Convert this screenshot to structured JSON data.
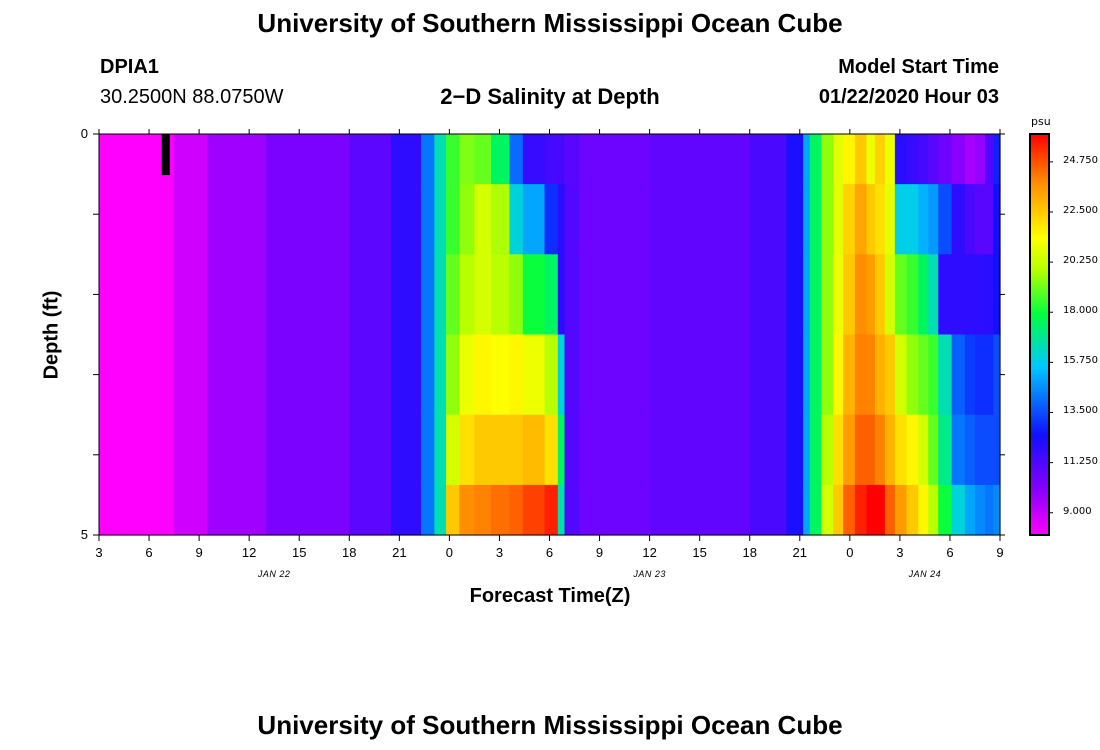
{
  "page": {
    "title_top": "University of Southern Mississippi Ocean Cube",
    "title_bottom": "University of Southern Mississippi Ocean Cube",
    "station_id": "DPIA1",
    "station_coords": "30.2500N 88.0750W",
    "plot_title": "2−D Salinity at Depth",
    "model_start_label": "Model Start Time",
    "model_start_value": "01/22/2020 Hour 03"
  },
  "chart_data": {
    "type": "heatmap",
    "title": "2-D Salinity at Depth",
    "xlabel": "Forecast Time(Z)",
    "ylabel": "Depth (ft)",
    "x_hours": [
      0,
      3,
      6,
      9,
      12,
      15,
      18,
      21,
      24,
      27,
      30,
      33,
      36,
      39,
      42,
      45,
      48,
      51,
      54
    ],
    "x_tick_labels": [
      "3",
      "6",
      "9",
      "12",
      "15",
      "18",
      "21",
      "0",
      "3",
      "6",
      "9",
      "12",
      "15",
      "18",
      "21",
      "0",
      "3",
      "6",
      "9"
    ],
    "date_labels": [
      {
        "text": "JAN 22",
        "hour": 10.5
      },
      {
        "text": "JAN 23",
        "hour": 33
      },
      {
        "text": "JAN 24",
        "hour": 49.5
      }
    ],
    "xlim": [
      0,
      54
    ],
    "y_tick_labels": [
      "0",
      "5"
    ],
    "ylim": [
      0,
      5
    ],
    "colorbar": {
      "unit": "psu",
      "tick_labels": [
        "24.750",
        "22.500",
        "20.250",
        "18.000",
        "15.750",
        "13.500",
        "11.250",
        "9.000"
      ],
      "range": [
        8.0,
        26.0
      ]
    },
    "depth_levels_ft": [
      0.25,
      1.0,
      2.0,
      3.0,
      4.0,
      4.75
    ],
    "time_segments": [
      {
        "t": [
          0,
          1.5
        ],
        "v": [
          7.5,
          7.5,
          7.5,
          7.5,
          7.5,
          7.5
        ]
      },
      {
        "t": [
          1.5,
          4.5
        ],
        "v": [
          7.2,
          7.2,
          7.2,
          7.2,
          7.2,
          7.2
        ]
      },
      {
        "t": [
          4.5,
          6.5
        ],
        "v": [
          8.8,
          8.8,
          8.8,
          8.8,
          8.8,
          8.8
        ]
      },
      {
        "t": [
          6.5,
          10
        ],
        "v": [
          9.6,
          9.6,
          9.6,
          9.6,
          9.6,
          9.6
        ]
      },
      {
        "t": [
          10,
          15
        ],
        "v": [
          10.3,
          10.3,
          10.3,
          10.3,
          10.3,
          10.3
        ]
      },
      {
        "t": [
          15,
          17.5
        ],
        "v": [
          10.9,
          10.9,
          10.9,
          10.9,
          10.9,
          10.9
        ]
      },
      {
        "t": [
          17.5,
          19.3
        ],
        "v": [
          11.9,
          11.9,
          11.9,
          11.9,
          11.9,
          11.9
        ]
      },
      {
        "t": [
          19.3,
          20.1
        ],
        "v": [
          14.2,
          14.2,
          14.2,
          14.2,
          14.2,
          14.2
        ]
      },
      {
        "t": [
          20.1,
          20.8
        ],
        "v": [
          16.5,
          16.5,
          16.5,
          16.5,
          16.5,
          16.5
        ]
      },
      {
        "t": [
          20.8,
          21.6
        ],
        "v": [
          18.5,
          18.5,
          19.0,
          19.5,
          20.5,
          22.5
        ]
      },
      {
        "t": [
          21.6,
          22.5
        ],
        "v": [
          19.3,
          19.5,
          20.0,
          21.0,
          22.0,
          23.8
        ]
      },
      {
        "t": [
          22.5,
          23.5
        ],
        "v": [
          19.0,
          20.5,
          20.5,
          21.5,
          22.5,
          24.0
        ]
      },
      {
        "t": [
          23.5,
          24.6
        ],
        "v": [
          17.5,
          19.8,
          20.0,
          21.3,
          22.5,
          24.3
        ]
      },
      {
        "t": [
          24.6,
          25.4
        ],
        "v": [
          14.0,
          16.0,
          19.5,
          21.5,
          22.5,
          24.5
        ]
      },
      {
        "t": [
          25.4,
          26.7
        ],
        "v": [
          11.7,
          15.0,
          18.0,
          21.0,
          22.8,
          25.0
        ]
      },
      {
        "t": [
          26.7,
          27.5
        ],
        "v": [
          11.4,
          13.0,
          17.5,
          20.0,
          22.0,
          25.5
        ]
      },
      {
        "t": [
          27.5,
          27.9
        ],
        "v": [
          11.4,
          12.0,
          12.0,
          16.0,
          17.5,
          16.5
        ]
      },
      {
        "t": [
          27.9,
          28.8
        ],
        "v": [
          11.0,
          11.1,
          11.1,
          11.1,
          11.1,
          11.1
        ]
      },
      {
        "t": [
          28.8,
          33
        ],
        "v": [
          10.6,
          10.6,
          10.6,
          10.6,
          10.6,
          10.6
        ]
      },
      {
        "t": [
          33,
          39
        ],
        "v": [
          10.8,
          10.8,
          10.8,
          10.8,
          10.8,
          10.8
        ]
      },
      {
        "t": [
          39,
          41.2
        ],
        "v": [
          11.3,
          11.3,
          11.3,
          11.3,
          11.3,
          11.3
        ]
      },
      {
        "t": [
          41.2,
          42.2
        ],
        "v": [
          12.3,
          12.3,
          12.3,
          12.3,
          12.3,
          12.3
        ]
      },
      {
        "t": [
          42.2,
          42.6
        ],
        "v": [
          15.0,
          15.0,
          15.0,
          15.0,
          15.0,
          15.0
        ]
      },
      {
        "t": [
          42.6,
          43.3
        ],
        "v": [
          17.5,
          17.5,
          17.5,
          17.5,
          17.5,
          17.5
        ]
      },
      {
        "t": [
          43.3,
          44
        ],
        "v": [
          19.5,
          19.5,
          19.5,
          19.5,
          20.0,
          20.5
        ]
      },
      {
        "t": [
          44,
          44.6
        ],
        "v": [
          20.8,
          20.8,
          21.0,
          21.5,
          22.0,
          22.5
        ]
      },
      {
        "t": [
          44.6,
          45.3
        ],
        "v": [
          21.5,
          22.3,
          22.5,
          23.0,
          23.5,
          24.5
        ]
      },
      {
        "t": [
          45.3,
          46.0
        ],
        "v": [
          22.5,
          23.3,
          23.8,
          24.0,
          24.5,
          25.5
        ]
      },
      {
        "t": [
          46.0,
          46.5
        ],
        "v": [
          21.0,
          22.5,
          23.5,
          24.0,
          24.5,
          26.0
        ]
      },
      {
        "t": [
          46.5,
          47.1
        ],
        "v": [
          22.3,
          22.0,
          22.5,
          23.0,
          24.0,
          26.0
        ]
      },
      {
        "t": [
          47.1,
          47.7
        ],
        "v": [
          21.0,
          20.8,
          20.5,
          22.5,
          23.0,
          24.5
        ]
      },
      {
        "t": [
          47.7,
          48.4
        ],
        "v": [
          12.0,
          15.8,
          19.0,
          20.5,
          22.0,
          23.5
        ]
      },
      {
        "t": [
          48.4,
          49.1
        ],
        "v": [
          11.7,
          15.8,
          18.5,
          19.5,
          21.5,
          22.5
        ]
      },
      {
        "t": [
          49.1,
          49.7
        ],
        "v": [
          11.4,
          15.2,
          17.5,
          19.0,
          20.5,
          21.5
        ]
      },
      {
        "t": [
          49.7,
          50.3
        ],
        "v": [
          11.0,
          14.8,
          16.5,
          18.5,
          19.0,
          20.0
        ]
      },
      {
        "t": [
          50.3,
          51.1
        ],
        "v": [
          10.6,
          13.5,
          11.9,
          16.5,
          17.0,
          18.0
        ]
      },
      {
        "t": [
          51.1,
          51.9
        ],
        "v": [
          10.0,
          11.9,
          11.9,
          13.8,
          14.2,
          16.0
        ]
      },
      {
        "t": [
          51.9,
          52.5
        ],
        "v": [
          9.5,
          11.3,
          11.9,
          13.2,
          13.8,
          15.0
        ]
      },
      {
        "t": [
          52.5,
          53.1
        ],
        "v": [
          9.8,
          11.0,
          11.9,
          13.0,
          13.5,
          14.5
        ]
      },
      {
        "t": [
          53.1,
          53.6
        ],
        "v": [
          11.2,
          11.0,
          12.0,
          13.0,
          13.5,
          14.2
        ]
      },
      {
        "t": [
          53.6,
          54
        ],
        "v": [
          12.8,
          12.5,
          12.5,
          13.5,
          13.5,
          14.5
        ]
      }
    ],
    "surface_marker": {
      "hour": 4,
      "depth_range_ft": [
        0,
        0.5
      ]
    }
  }
}
